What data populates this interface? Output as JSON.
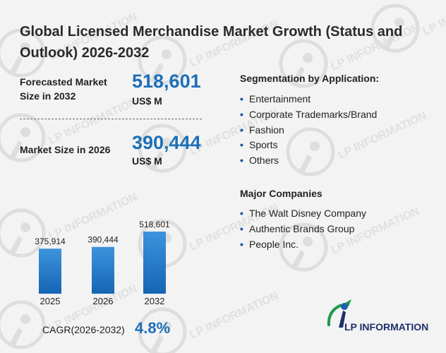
{
  "title": "Global Licensed Merchandise Market Growth (Status and Outlook) 2026-2032",
  "forecast": {
    "label": "Forecasted Market Size in 2032",
    "value": "518,601",
    "unit": "US$ M"
  },
  "current": {
    "label": "Market Size in 2026",
    "value": "390,444",
    "unit": "US$ M"
  },
  "segmentation": {
    "heading": "Segmentation by Application:",
    "items": [
      "Entertainment",
      "Corporate Trademarks/Brand",
      "Fashion",
      "Sports",
      "Others"
    ]
  },
  "companies": {
    "heading": "Major Companies",
    "items": [
      "The Walt Disney Company",
      "Authentic Brands Group",
      "People Inc."
    ]
  },
  "chart_data": {
    "type": "bar",
    "categories": [
      "2025",
      "2026",
      "2032"
    ],
    "values": [
      375914,
      390444,
      518601
    ],
    "value_labels": [
      "375,914",
      "390,444",
      "518,601"
    ],
    "bar_color": "#1c74c4"
  },
  "cagr": {
    "label": "CAGR(2026-2032)",
    "value": "4.8%"
  },
  "logo": {
    "text": "LP INFORMATION"
  },
  "colors": {
    "accent": "#1c70b8",
    "text": "#222222",
    "bullet": "#1c4fa0",
    "background": "#f3f3f3",
    "watermark": "#d9d9d9"
  }
}
